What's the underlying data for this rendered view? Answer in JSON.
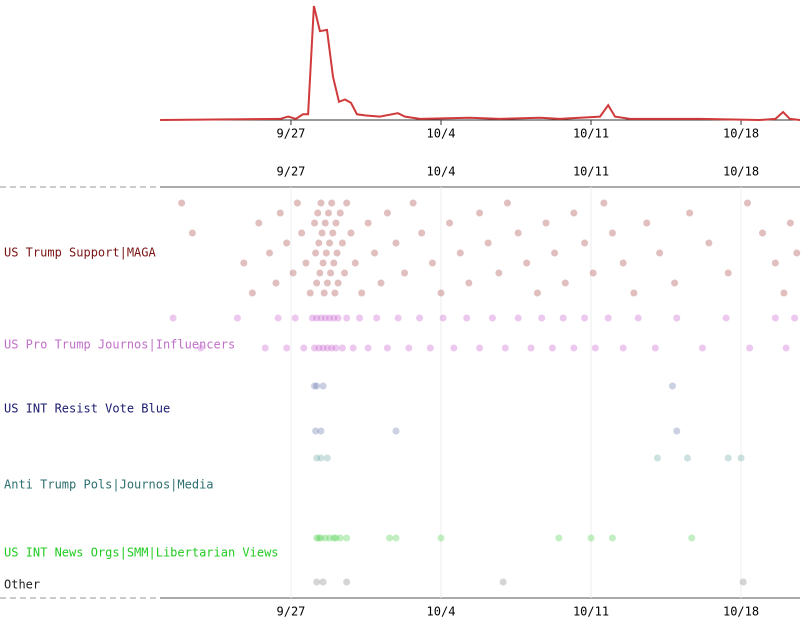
{
  "chart_data": [
    {
      "type": "line",
      "color": "#d03a3a",
      "x": [
        -6.1,
        -0.5,
        -0.13,
        0.23,
        0.56,
        0.8,
        1.07,
        1.35,
        1.68,
        1.96,
        2.24,
        2.52,
        2.8,
        3.08,
        3.45,
        4.15,
        4.99,
        5.32,
        6.02,
        8.35,
        9.75,
        11.62,
        12.55,
        14.42,
        14.8,
        15.12,
        15.82,
        19.08,
        21.88,
        22.6,
        22.96,
        23.28,
        23.75
      ],
      "values": [
        0,
        1,
        3,
        1,
        5,
        5,
        100,
        78,
        79,
        38,
        16,
        18,
        15,
        5,
        4,
        3,
        6,
        3,
        1,
        2,
        1,
        2,
        1,
        3,
        13,
        3,
        1,
        1,
        0,
        1,
        7,
        1,
        0
      ],
      "xlim": [
        -6.11,
        23.75
      ],
      "ylim": [
        0,
        100
      ],
      "xticks": [
        {
          "value": 0,
          "label": "9/27"
        },
        {
          "value": 7,
          "label": "10/4"
        },
        {
          "value": 14,
          "label": "10/11"
        },
        {
          "value": 21,
          "label": "10/18"
        }
      ]
    },
    {
      "type": "dot-timeline",
      "xlim": [
        -6.11,
        23.75
      ],
      "xticks": [
        {
          "value": 0,
          "label": "9/27"
        },
        {
          "value": 7,
          "label": "10/4"
        },
        {
          "value": 14,
          "label": "10/11"
        },
        {
          "value": 21,
          "label": "10/18"
        }
      ],
      "groups": [
        {
          "name": "US Trump Support|MAGA",
          "label_color": "#7a1414",
          "color": "#a84848",
          "x": [
            -5.1,
            -4.6,
            -2.2,
            -1.8,
            -1.5,
            -1,
            -0.7,
            -0.5,
            -0.2,
            0.1,
            0.3,
            0.5,
            0.7,
            0.9,
            1.1,
            1.15,
            1.2,
            1.25,
            1.3,
            1.35,
            1.4,
            1.45,
            1.5,
            1.55,
            1.6,
            1.65,
            1.7,
            1.75,
            1.8,
            1.85,
            1.9,
            1.95,
            2.0,
            2.05,
            2.1,
            2.15,
            2.2,
            2.3,
            2.4,
            2.5,
            2.6,
            2.8,
            3.0,
            3.3,
            3.6,
            3.9,
            4.2,
            4.5,
            4.9,
            5.3,
            5.7,
            6.1,
            6.6,
            7.0,
            7.4,
            7.9,
            8.3,
            8.8,
            9.2,
            9.7,
            10.1,
            10.6,
            11.0,
            11.5,
            11.9,
            12.3,
            12.8,
            13.2,
            13.7,
            14.1,
            14.6,
            15.0,
            15.5,
            16.0,
            16.6,
            17.2,
            17.9,
            18.6,
            19.5,
            20.4,
            21.3,
            22.0,
            22.6,
            23.0,
            23.3,
            23.6
          ]
        },
        {
          "name": "US Pro Trump Journos|Influencers",
          "label_color": "#c070c8",
          "color": "#c860d0",
          "x": [
            -5.5,
            -4.2,
            -2.5,
            -1.2,
            -0.6,
            -0.2,
            0.2,
            0.6,
            1.0,
            1.1,
            1.2,
            1.3,
            1.4,
            1.5,
            1.6,
            1.7,
            1.8,
            1.9,
            2.0,
            2.1,
            2.2,
            2.4,
            2.6,
            2.9,
            3.2,
            3.6,
            4.0,
            4.5,
            5.0,
            5.5,
            6.0,
            6.5,
            7.1,
            7.6,
            8.2,
            8.8,
            9.4,
            10.0,
            10.6,
            11.2,
            11.7,
            12.2,
            12.7,
            13.2,
            13.7,
            14.2,
            14.8,
            15.5,
            16.2,
            17.0,
            18.0,
            19.2,
            20.3,
            21.4,
            22.6,
            23.1,
            23.5
          ]
        },
        {
          "name": "US INT Resist Vote Blue",
          "label_color": "#1a1a6e",
          "color": "#6a78b0",
          "x": [
            1.1,
            1.15,
            1.2,
            1.4,
            1.5,
            4.9,
            17.8,
            18.0
          ]
        },
        {
          "name": "Anti Trump Pols|Journos|Media",
          "label_color": "#2e6f6f",
          "color": "#70a8a8",
          "x": [
            1.2,
            1.4,
            1.7,
            17.1,
            18.5,
            20.4,
            21.0
          ]
        },
        {
          "name": "US INT News Orgs|SMM|Libertarian Views",
          "label_color": "#22cc22",
          "color": "#50d050",
          "x": [
            1.2,
            1.3,
            1.4,
            1.6,
            1.8,
            2.0,
            2.1,
            2.3,
            2.6,
            4.6,
            4.9,
            7.0,
            12.5,
            14.0,
            15.0,
            18.7
          ]
        },
        {
          "name": "Other",
          "label_color": "#222222",
          "color": "#888888",
          "x": [
            1.2,
            1.5,
            2.6,
            9.9,
            21.1
          ]
        }
      ]
    }
  ]
}
